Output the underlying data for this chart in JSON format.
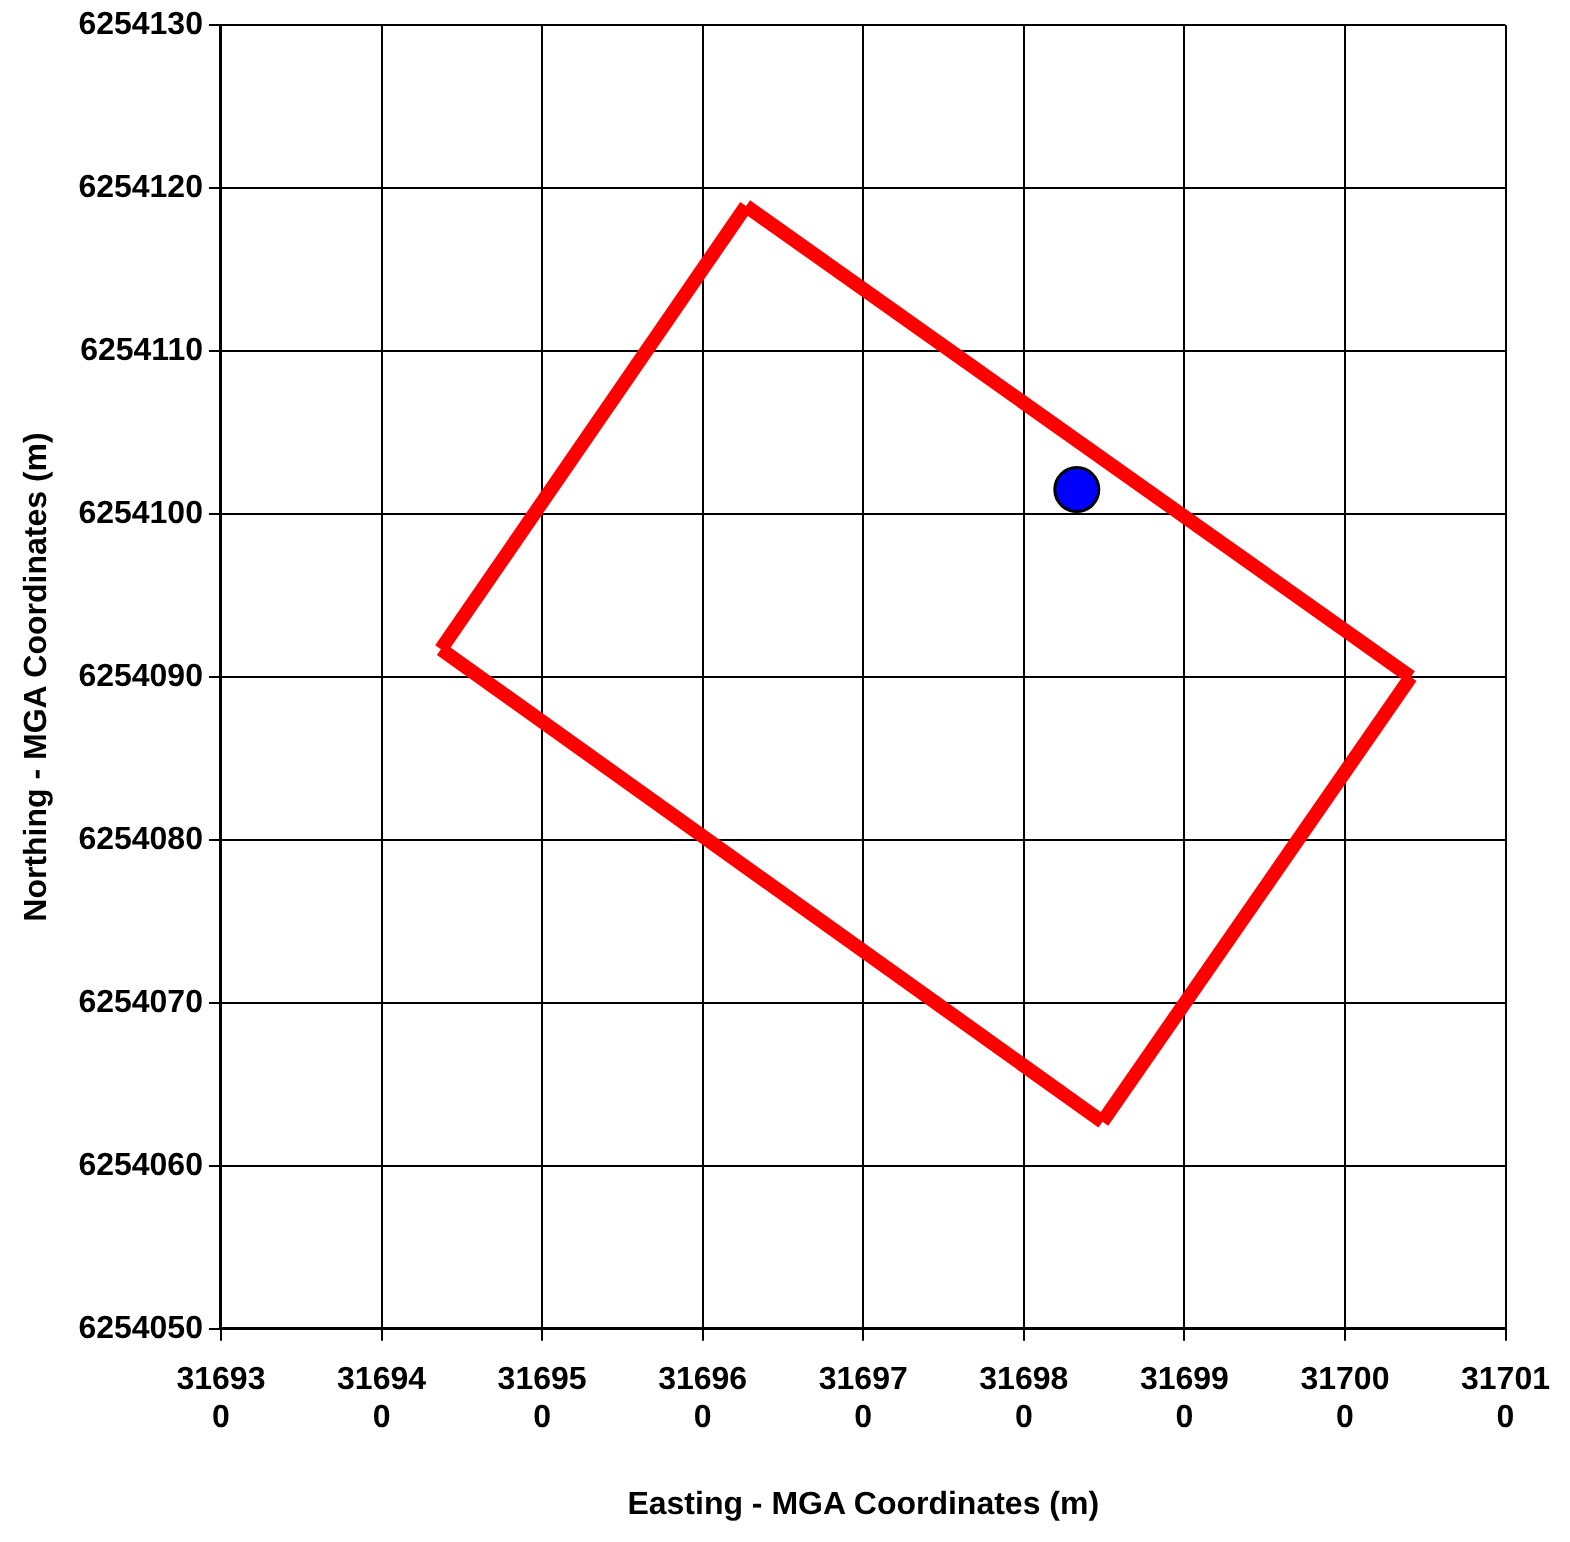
{
  "chart_data": {
    "type": "line",
    "xlabel": "Easting - MGA Coordinates (m)",
    "ylabel": "Northing - MGA Coordinates (m)",
    "xlim": [
      316930,
      317010
    ],
    "xticks": [
      316930,
      316940,
      316950,
      316960,
      316970,
      316980,
      316990,
      317000,
      317010
    ],
    "ylim": [
      6254050,
      6254130
    ],
    "yticks": [
      6254050,
      6254060,
      6254070,
      6254080,
      6254090,
      6254100,
      6254110,
      6254120,
      6254130
    ],
    "grid": true,
    "legend": false,
    "series": [
      {
        "type": "line",
        "color": "#ff0000",
        "marker": "none",
        "line_style": "solid",
        "x": [
          316962.7,
          317004.1
        ],
        "values": [
          6254118.9,
          6254090
        ]
      },
      {
        "type": "line",
        "color": "#ff0000",
        "marker": "none",
        "line_style": "solid",
        "x": [
          316984.9,
          317004.1
        ],
        "values": [
          6254062.7,
          6254090
        ]
      },
      {
        "type": "line",
        "color": "#ff0000",
        "marker": "none",
        "line_style": "solid",
        "x": [
          316943.7,
          316984.9
        ],
        "values": [
          6254091.7,
          6254062.7
        ]
      },
      {
        "color": "#ff0000",
        "marker": "none",
        "line_style": "solid",
        "x": [
          316943.7,
          316962.7
        ],
        "values": [
          6254091.7,
          6254118.9
        ]
      },
      {
        "type": "scatter",
        "color": "#0000ff",
        "marker": "circle",
        "x": [
          316983.3
        ],
        "values": [
          6254101.5
        ]
      }
    ]
  }
}
